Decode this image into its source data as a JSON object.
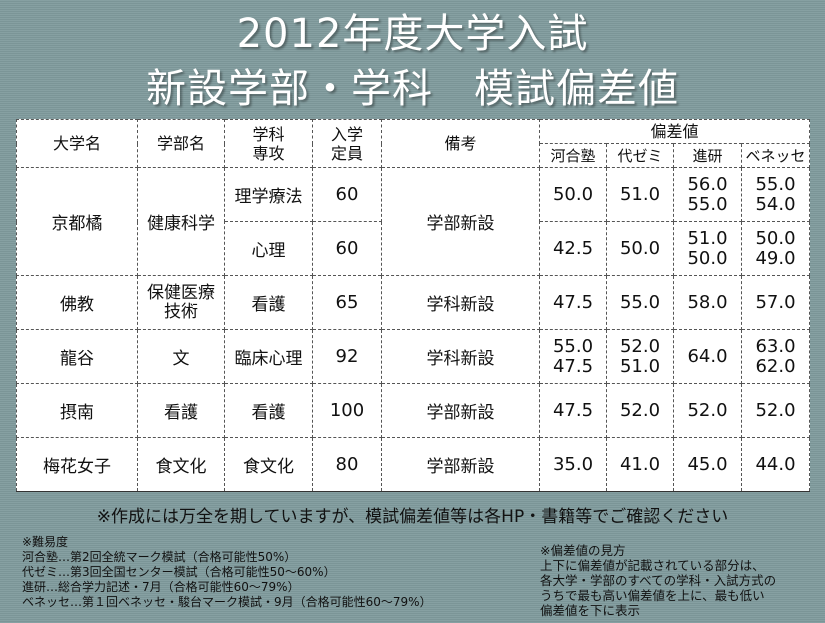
{
  "title_line1": "2012年度大学入試",
  "title_line2": "新設学部・学科　模試偏差値",
  "headers": {
    "university": "大学名",
    "faculty": "学部名",
    "dept_1": "学科",
    "dept_2": "専攻",
    "capacity_1": "入学",
    "capacity_2": "定員",
    "remarks": "備考",
    "deviation": "偏差値",
    "kawai": "河合塾",
    "yozemi": "代ゼミ",
    "shinken": "進研",
    "benesse": "ベネッセ"
  },
  "rows": [
    {
      "university": "京都橘",
      "faculty": "健康科学",
      "dept": "理学療法",
      "capacity": "60",
      "remarks": "学部新設",
      "kawai": "50.0",
      "yozemi": "51.0",
      "shinken": "56.0\n55.0",
      "benesse": "55.0\n54.0"
    },
    {
      "dept": "心理",
      "capacity": "60",
      "kawai": "42.5",
      "yozemi": "50.0",
      "shinken": "51.0\n50.0",
      "benesse": "50.0\n49.0"
    },
    {
      "university": "佛教",
      "faculty": "保健医療\n技術",
      "dept": "看護",
      "capacity": "65",
      "remarks": "学科新設",
      "kawai": "47.5",
      "yozemi": "55.0",
      "shinken": "58.0",
      "benesse": "57.0"
    },
    {
      "university": "龍谷",
      "faculty": "文",
      "dept": "臨床心理",
      "capacity": "92",
      "remarks": "学科新設",
      "kawai": "55.0\n47.5",
      "yozemi": "52.0\n51.0",
      "shinken": "64.0",
      "benesse": "63.0\n62.0"
    },
    {
      "university": "摂南",
      "faculty": "看護",
      "dept": "看護",
      "capacity": "100",
      "remarks": "学部新設",
      "kawai": "47.5",
      "yozemi": "52.0",
      "shinken": "52.0",
      "benesse": "52.0"
    },
    {
      "university": "梅花女子",
      "faculty": "食文化",
      "dept": "食文化",
      "capacity": "80",
      "remarks": "学部新設",
      "kawai": "35.0",
      "yozemi": "41.0",
      "shinken": "45.0",
      "benesse": "44.0"
    }
  ],
  "notice": "※作成には万全を期していますが、模試偏差値等は各HP・書籍等でご確認ください",
  "difficulty_notes": [
    "※難易度",
    "河合塾…第2回全統マーク模試（合格可能性50%）",
    "代ゼミ…第3回全国センター模試（合格可能性50～60%）",
    "進研…総合学力記述・7月（合格可能性60～79%）",
    "ベネッセ…第１回ベネッセ・駿台マーク模試・9月（合格可能性60～79%）"
  ],
  "reading_notes": [
    "※偏差値の見方",
    "上下に偏差値が記載されている部分は、",
    "各大学・学部のすべての学科・入試方式の",
    "うちで最も高い偏差値を上に、最も低い",
    "偏差値を下に表示"
  ]
}
